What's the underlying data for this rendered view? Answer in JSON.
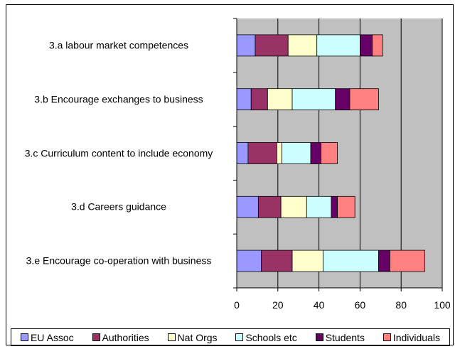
{
  "chart_data": {
    "type": "stacked_barh",
    "categories": [
      "3.a  labour market competences",
      "3.b Encourage exchanges to business",
      "3.c Curriculum content to include economy",
      "3.d Careers guidance",
      "3.e Encourage co-operation with business"
    ],
    "series": [
      {
        "name": "EU Assoc",
        "color": "#9999ff",
        "values": [
          9,
          7,
          5.5,
          10.5,
          12
        ]
      },
      {
        "name": "Authorities",
        "color": "#993366",
        "values": [
          16,
          8,
          14,
          11,
          15
        ]
      },
      {
        "name": "Nat Orgs",
        "color": "#ffffcc",
        "values": [
          14,
          12,
          2.5,
          12.5,
          15
        ]
      },
      {
        "name": "Schools etc",
        "color": "#ccffff",
        "values": [
          21,
          21,
          14,
          12,
          27
        ]
      },
      {
        "name": "Students",
        "color": "#660066",
        "values": [
          6,
          7,
          5,
          3,
          5.5
        ]
      },
      {
        "name": "Individuals",
        "color": "#ff8080",
        "values": [
          5,
          14,
          8,
          8.5,
          17
        ]
      }
    ],
    "xlim": [
      0,
      100
    ],
    "xticks": [
      0,
      20,
      40,
      60,
      80,
      100
    ],
    "grid": true,
    "legend": "bottom"
  }
}
